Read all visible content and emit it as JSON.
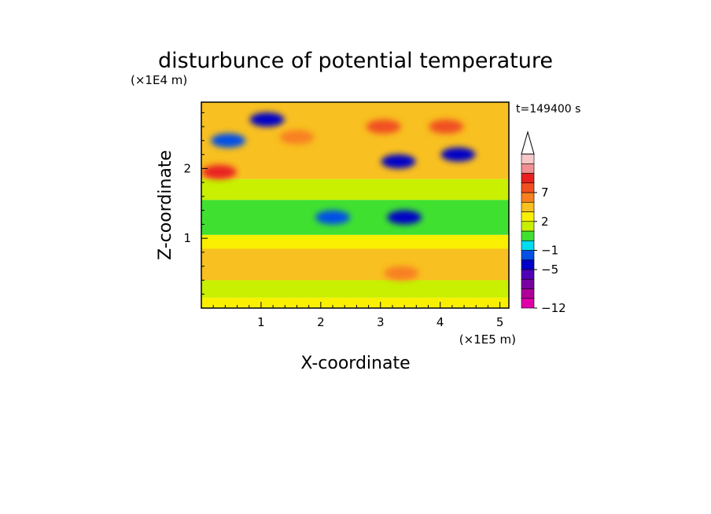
{
  "chart_data": {
    "type": "heatmap",
    "title": "disturbunce of potential temperature",
    "xlabel": "X-coordinate",
    "ylabel": "Z-coordinate",
    "x_scale_label": "(×1E5 m)",
    "y_scale_label": "(×1E4 m)",
    "time_label": "t=149400 s",
    "xlim": [
      0,
      5.15
    ],
    "ylim": [
      0,
      2.95
    ],
    "x_ticks": [
      1,
      2,
      3,
      4,
      5
    ],
    "y_ticks": [
      1,
      2
    ],
    "colorbar": {
      "levels": [
        -12,
        -11,
        -9,
        -7,
        -5,
        -3,
        -1,
        0,
        1,
        2,
        3,
        5,
        7,
        9,
        11
      ],
      "tick_labels": [
        "−12",
        "−5",
        "−1",
        "2",
        "7"
      ],
      "tick_values": [
        -12,
        -5,
        -1,
        2,
        7
      ],
      "colors": [
        "#e000a8",
        "#b0009c",
        "#7800a0",
        "#5000b8",
        "#0000c8",
        "#0050e8",
        "#00dcf0",
        "#40e030",
        "#c8f000",
        "#f8f000",
        "#f8c020",
        "#f88020",
        "#f05020",
        "#e82020",
        "#f09090",
        "#f8c8c8"
      ],
      "extend": "max"
    },
    "field_bands": [
      {
        "z_range": [
          0,
          0.15
        ],
        "value": 1.5
      },
      {
        "z_range": [
          0.15,
          0.4
        ],
        "value": 0.5
      },
      {
        "z_range": [
          0.4,
          0.85
        ],
        "value": 2.4
      },
      {
        "z_range": [
          0.85,
          1.05
        ],
        "value": 1.5
      },
      {
        "z_range": [
          1.05,
          1.55
        ],
        "value": -0.5
      },
      {
        "z_range": [
          1.55,
          1.85
        ],
        "value": 0.5
      },
      {
        "z_range": [
          1.85,
          2.95
        ],
        "value": 2.5
      }
    ],
    "features": [
      {
        "x": 0.3,
        "z": 1.95,
        "value": 8
      },
      {
        "x": 1.6,
        "z": 2.45,
        "value": 4
      },
      {
        "x": 3.05,
        "z": 2.6,
        "value": 6
      },
      {
        "x": 4.1,
        "z": 2.6,
        "value": 6
      },
      {
        "x": 3.3,
        "z": 2.1,
        "value": -6
      },
      {
        "x": 4.3,
        "z": 2.2,
        "value": -6
      },
      {
        "x": 1.1,
        "z": 2.7,
        "value": -6
      },
      {
        "x": 0.45,
        "z": 2.4,
        "value": -5
      },
      {
        "x": 2.2,
        "z": 1.3,
        "value": -5
      },
      {
        "x": 3.4,
        "z": 1.3,
        "value": -7
      },
      {
        "x": 3.35,
        "z": 0.5,
        "value": 4
      }
    ]
  }
}
